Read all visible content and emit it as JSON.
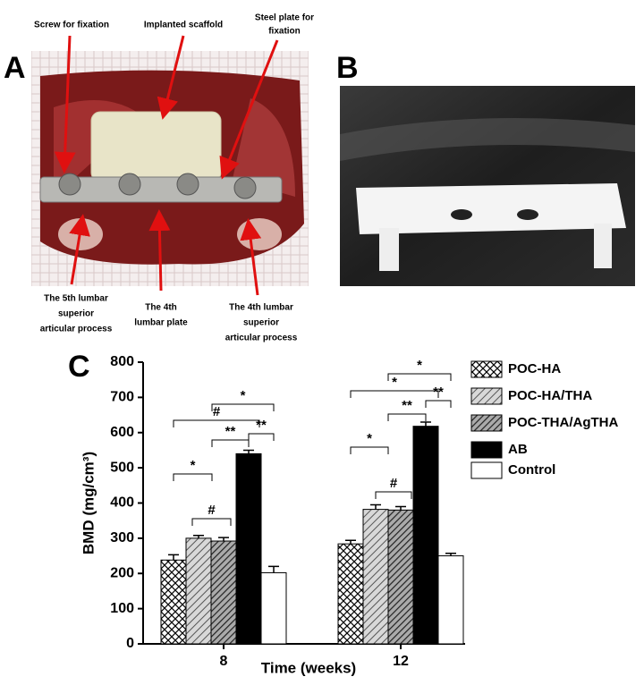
{
  "panels": {
    "a": "A",
    "b": "B",
    "c": "C"
  },
  "photo_labels": {
    "screw": "Screw for fixation",
    "scaffold": "Implanted scaffold",
    "plate": [
      "Steel plate for",
      "fixation"
    ],
    "l5": [
      "The 5th lumbar",
      "superior",
      "articular process"
    ],
    "l4plate": [
      "The 4th",
      "lumbar plate"
    ],
    "l4": [
      "The 4th lumbar",
      "superior",
      "articular process"
    ]
  },
  "chart_data": {
    "type": "bar",
    "x_label": "Time (weeks)",
    "y_label": "BMD (mg/cm³)",
    "categories": [
      "8",
      "12"
    ],
    "ylim": [
      0,
      800
    ],
    "yticks": [
      0,
      100,
      200,
      300,
      400,
      500,
      600,
      700,
      800
    ],
    "series": [
      {
        "name": "POC-HA",
        "color": "#000000",
        "pattern": "crosshatch",
        "values": [
          238,
          284
        ],
        "errors": [
          15,
          10
        ]
      },
      {
        "name": "POC-HA/THA",
        "color": "#999999",
        "pattern": "hatch-light",
        "values": [
          300,
          382
        ],
        "errors": [
          8,
          13
        ]
      },
      {
        "name": "POC-THA/AgTHA",
        "color": "#555555",
        "pattern": "hatch-dark",
        "values": [
          292,
          380
        ],
        "errors": [
          10,
          10
        ]
      },
      {
        "name": "AB",
        "color": "#000000",
        "pattern": "solid",
        "values": [
          540,
          618
        ],
        "errors": [
          10,
          12
        ]
      },
      {
        "name": "Control",
        "color": "#ffffff",
        "pattern": "solid",
        "values": [
          202,
          250
        ],
        "errors": [
          18,
          7
        ]
      }
    ],
    "significance_labels": [
      "*",
      "#",
      "#",
      "**",
      "**",
      "*",
      "*",
      "#",
      "*",
      "**",
      "**",
      "*"
    ]
  }
}
